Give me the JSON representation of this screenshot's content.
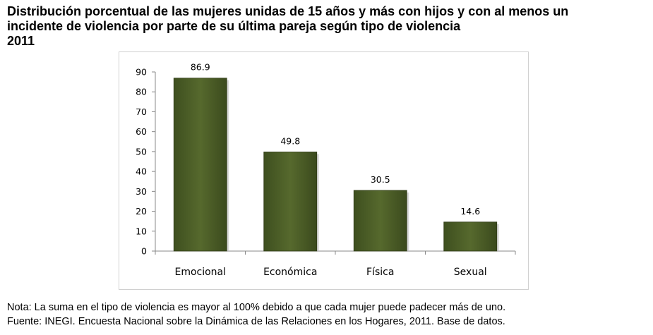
{
  "title_lines": [
    "Distribución porcentual de las mujeres unidas de 15 años y más con hijos y con al menos un",
    "incidente de violencia por parte de su última pareja según tipo de violencia",
    "2011"
  ],
  "chart_data": {
    "type": "bar",
    "categories": [
      "Emocional",
      "Económica",
      "Física",
      "Sexual"
    ],
    "values": [
      86.9,
      49.8,
      30.5,
      14.6
    ],
    "ylim": [
      0,
      90
    ],
    "yticks": [
      0,
      10,
      20,
      30,
      40,
      50,
      60,
      70,
      80,
      90
    ],
    "data_labels": [
      "86.9",
      "49.8",
      "30.5",
      "14.6"
    ],
    "grid": false,
    "legend": false,
    "bar_color": "#4f6228",
    "xlabel": "",
    "ylabel": ""
  },
  "footer": {
    "note": "Nota: La suma en el tipo de violencia es mayor al 100% debido a que cada mujer puede padecer más de uno.",
    "source": "Fuente: INEGI. Encuesta Nacional sobre la Dinámica de las Relaciones en los Hogares, 2011. Base de datos."
  }
}
